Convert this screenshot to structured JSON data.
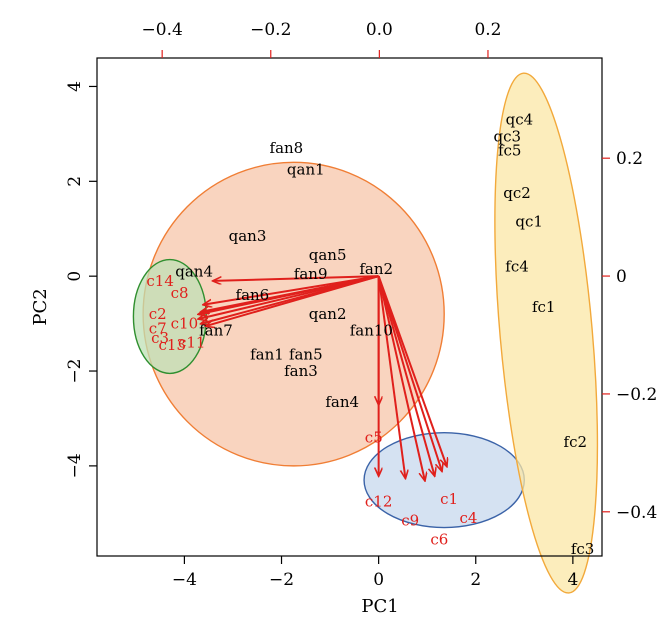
{
  "chart_data": {
    "type": "biplot",
    "xlabel": "PC1",
    "ylabel": "PC2",
    "xlim": [
      -5.8,
      4.6
    ],
    "ylim": [
      -5.9,
      4.6
    ],
    "xticks": [
      -4,
      -2,
      0,
      2,
      4
    ],
    "yticks": [
      -4,
      -2,
      0,
      2,
      4
    ],
    "loading_axis": {
      "xlim": [
        -0.52,
        0.41
      ],
      "ylim": [
        -0.475,
        0.37
      ],
      "top_ticks": [
        -0.4,
        -0.2,
        0.0,
        0.2
      ],
      "top_tick_labels": [
        "−0.4",
        "−0.2",
        "0.0",
        "0.2"
      ],
      "right_ticks": [
        0.2,
        0.0,
        -0.2,
        -0.4
      ],
      "right_tick_labels": [
        "0.2",
        "0",
        "−0.2",
        "−0.4"
      ]
    },
    "tick_labels": {
      "x": [
        "−4",
        "−2",
        "0",
        "2",
        "4"
      ],
      "y": [
        "−4",
        "−2",
        "0",
        "2",
        "4"
      ]
    },
    "colors": {
      "scores": "#000000",
      "loadings": "#e0201c",
      "loading_arrows": "#e0201c"
    },
    "ellipses": [
      {
        "group": "orange",
        "cx": -1.75,
        "cy": -0.8,
        "rx": 3.1,
        "ry": 3.2,
        "angle": 0,
        "fill": "#f7c6aa",
        "stroke": "#f07e35"
      },
      {
        "group": "green",
        "cx": -4.3,
        "cy": -0.85,
        "rx": 0.75,
        "ry": 1.2,
        "angle": 0,
        "fill": "#bfe0b5",
        "stroke": "#2f8f2f"
      },
      {
        "group": "blue",
        "cx": 1.35,
        "cy": -4.3,
        "rx": 1.65,
        "ry": 1.0,
        "angle": 0,
        "fill": "#c7d8ee",
        "stroke": "#3b63a8"
      },
      {
        "group": "yellow",
        "cx": 3.45,
        "cy": -1.2,
        "rx": 0.95,
        "ry": 5.5,
        "angle": -5,
        "fill": "#fbe7a6",
        "stroke": "#f2a93b"
      }
    ],
    "scores": [
      {
        "label": "fan8",
        "x": -1.9,
        "y": 2.7
      },
      {
        "label": "qan1",
        "x": -1.5,
        "y": 2.25
      },
      {
        "label": "qan3",
        "x": -2.7,
        "y": 0.85
      },
      {
        "label": "qan5",
        "x": -1.05,
        "y": 0.45
      },
      {
        "label": "fan2",
        "x": -0.05,
        "y": 0.15
      },
      {
        "label": "qan4",
        "x": -3.8,
        "y": 0.1
      },
      {
        "label": "fan9",
        "x": -1.4,
        "y": 0.05
      },
      {
        "label": "fan6",
        "x": -2.6,
        "y": -0.4
      },
      {
        "label": "qan2",
        "x": -1.05,
        "y": -0.8
      },
      {
        "label": "fan10",
        "x": -0.15,
        "y": -1.15
      },
      {
        "label": "fan7",
        "x": -3.35,
        "y": -1.15
      },
      {
        "label": "fan1",
        "x": -2.3,
        "y": -1.65
      },
      {
        "label": "fan5",
        "x": -1.5,
        "y": -1.65
      },
      {
        "label": "fan3",
        "x": -1.6,
        "y": -2.0
      },
      {
        "label": "fan4",
        "x": -0.75,
        "y": -2.65
      },
      {
        "label": "qc4",
        "x": 2.9,
        "y": 3.3
      },
      {
        "label": "qc3",
        "x": 2.65,
        "y": 2.95
      },
      {
        "label": "fc5",
        "x": 2.7,
        "y": 2.65
      },
      {
        "label": "qc2",
        "x": 2.85,
        "y": 1.75
      },
      {
        "label": "qc1",
        "x": 3.1,
        "y": 1.15
      },
      {
        "label": "fc4",
        "x": 2.85,
        "y": 0.2
      },
      {
        "label": "fc1",
        "x": 3.4,
        "y": -0.65
      },
      {
        "label": "fc2",
        "x": 4.05,
        "y": -3.5
      },
      {
        "label": "fc3",
        "x": 4.2,
        "y": -5.75
      }
    ],
    "loadings": [
      {
        "label": "c14",
        "x": -4.5,
        "y": -0.1
      },
      {
        "label": "c8",
        "x": -4.1,
        "y": -0.35
      },
      {
        "label": "c2",
        "x": -4.55,
        "y": -0.8
      },
      {
        "label": "c7",
        "x": -4.55,
        "y": -1.1
      },
      {
        "label": "c10",
        "x": -4.0,
        "y": -1.0
      },
      {
        "label": "c3",
        "x": -4.5,
        "y": -1.3
      },
      {
        "label": "c13",
        "x": -4.25,
        "y": -1.45
      },
      {
        "label": "c11",
        "x": -3.85,
        "y": -1.4
      },
      {
        "label": "c5",
        "x": -0.1,
        "y": -3.4
      },
      {
        "label": "c12",
        "x": 0.0,
        "y": -4.75
      },
      {
        "label": "c9",
        "x": 0.65,
        "y": -5.15
      },
      {
        "label": "c1",
        "x": 1.45,
        "y": -4.7
      },
      {
        "label": "c6",
        "x": 1.25,
        "y": -5.55
      },
      {
        "label": "c4",
        "x": 1.85,
        "y": -5.1
      }
    ],
    "arrows": {
      "origin": [
        0,
        0
      ],
      "tips": [
        [
          -3.4,
          -0.1
        ],
        [
          -3.6,
          -0.6
        ],
        [
          -3.65,
          -0.75
        ],
        [
          -3.7,
          -0.9
        ],
        [
          -3.65,
          -1.0
        ],
        [
          -3.55,
          -1.05
        ],
        [
          -3.7,
          -0.8
        ],
        [
          0.0,
          -2.7
        ],
        [
          0.0,
          -4.2
        ],
        [
          0.55,
          -4.25
        ],
        [
          0.95,
          -4.3
        ],
        [
          1.15,
          -4.2
        ],
        [
          1.3,
          -4.1
        ],
        [
          1.4,
          -4.0
        ]
      ]
    }
  }
}
